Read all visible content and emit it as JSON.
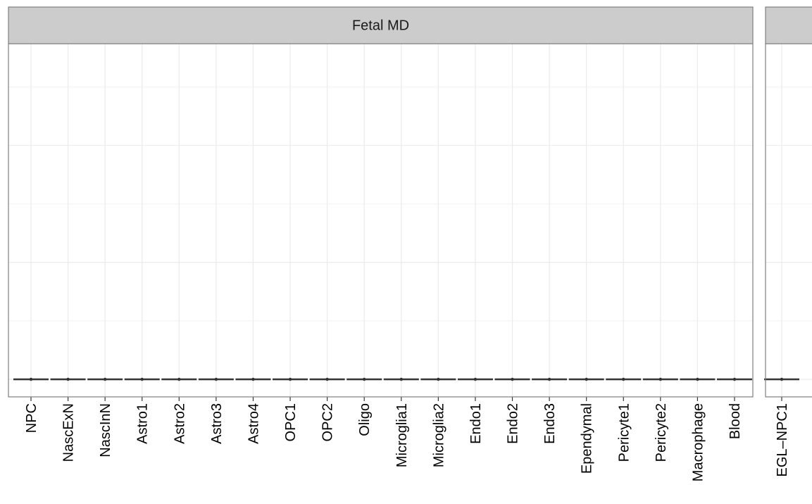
{
  "chart_data": [
    {
      "type": "box",
      "title": "Fetal MD",
      "categories": [
        "NPC",
        "NascExN",
        "NascInN",
        "Astro1",
        "Astro2",
        "Astro3",
        "Astro4",
        "OPC1",
        "OPC2",
        "Oligo",
        "Microglia1",
        "Microglia2",
        "Endo1",
        "Endo2",
        "Endo3",
        "Ependymal",
        "Pericyte1",
        "Pericyte2",
        "Macrophage",
        "Blood"
      ],
      "values": [
        0,
        0,
        0,
        0,
        0,
        0,
        0,
        0,
        0,
        0,
        0,
        0,
        0,
        0,
        0,
        0,
        0,
        0,
        0,
        0
      ],
      "color": "#333333",
      "ylim": [
        -0.15,
        2.87
      ],
      "yticks": [
        0,
        1,
        2
      ],
      "grid": true,
      "minor_grid": true
    },
    {
      "type": "box",
      "categories": [
        "EGL–NPC1"
      ],
      "values": [
        0
      ],
      "color": "#333333",
      "ylim": [
        -0.15,
        2.87
      ],
      "yticks": [
        0,
        1,
        2
      ],
      "grid": true,
      "minor_grid": true
    }
  ]
}
